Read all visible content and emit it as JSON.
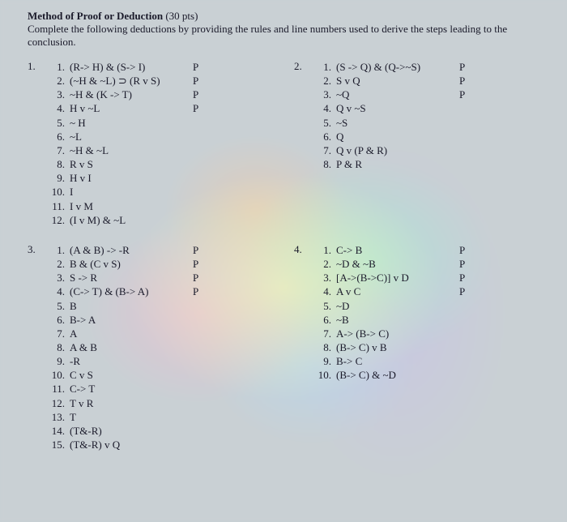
{
  "header": {
    "title_bold": "Method of Proof or Deduction",
    "title_pts": "(30 pts)",
    "instructions": "Complete the following deductions by providing the rules and line numbers used to derive the steps leading to the conclusion."
  },
  "problems": [
    {
      "num": "1.",
      "lines": [
        {
          "n": "1.",
          "expr": "(R-> H) & (S-> I)",
          "just": "P"
        },
        {
          "n": "2.",
          "expr": "(~H & ~L) ⊃ (R v S)",
          "just": "P"
        },
        {
          "n": "3.",
          "expr": "~H & (K -> T)",
          "just": "P"
        },
        {
          "n": "4.",
          "expr": "H v ~L",
          "just": "P"
        },
        {
          "n": "5.",
          "expr": "~ H",
          "just": ""
        },
        {
          "n": "6.",
          "expr": "~L",
          "just": ""
        },
        {
          "n": "7.",
          "expr": "~H & ~L",
          "just": ""
        },
        {
          "n": "8.",
          "expr": "R v S",
          "just": ""
        },
        {
          "n": "9.",
          "expr": "H v I",
          "just": ""
        },
        {
          "n": "10.",
          "expr": "I",
          "just": ""
        },
        {
          "n": "11.",
          "expr": "I v M",
          "just": ""
        },
        {
          "n": "12.",
          "expr": "(I v M) & ~L",
          "just": ""
        }
      ]
    },
    {
      "num": "2.",
      "lines": [
        {
          "n": "1.",
          "expr": "(S -> Q) & (Q->~S)",
          "just": "P"
        },
        {
          "n": "2.",
          "expr": "S v Q",
          "just": "P"
        },
        {
          "n": "3.",
          "expr": "~Q",
          "just": "P"
        },
        {
          "n": "4.",
          "expr": "Q v ~S",
          "just": ""
        },
        {
          "n": "5.",
          "expr": "~S",
          "just": ""
        },
        {
          "n": "6.",
          "expr": "Q",
          "just": ""
        },
        {
          "n": "7.",
          "expr": "Q v (P & R)",
          "just": ""
        },
        {
          "n": "8.",
          "expr": "P & R",
          "just": ""
        }
      ]
    },
    {
      "num": "3.",
      "lines": [
        {
          "n": "1.",
          "expr": "(A & B) -> -R",
          "just": "P"
        },
        {
          "n": "2.",
          "expr": "B & (C v S)",
          "just": "P"
        },
        {
          "n": "3.",
          "expr": "S -> R",
          "just": "P"
        },
        {
          "n": "4.",
          "expr": "(C-> T) & (B-> A)",
          "just": "P"
        },
        {
          "n": "5.",
          "expr": "B",
          "just": ""
        },
        {
          "n": "6.",
          "expr": "B-> A",
          "just": ""
        },
        {
          "n": "7.",
          "expr": "A",
          "just": ""
        },
        {
          "n": "8.",
          "expr": "A & B",
          "just": ""
        },
        {
          "n": "9.",
          "expr": "-R",
          "just": ""
        },
        {
          "n": "10.",
          "expr": "C v S",
          "just": ""
        },
        {
          "n": "11.",
          "expr": "C-> T",
          "just": ""
        },
        {
          "n": "12.",
          "expr": "T v R",
          "just": ""
        },
        {
          "n": "13.",
          "expr": "T",
          "just": ""
        },
        {
          "n": "14.",
          "expr": "(T&-R)",
          "just": ""
        },
        {
          "n": "15.",
          "expr": "(T&-R) v Q",
          "just": ""
        }
      ]
    },
    {
      "num": "4.",
      "lines": [
        {
          "n": "1.",
          "expr": "C-> B",
          "just": "P"
        },
        {
          "n": "2.",
          "expr": "~D & ~B",
          "just": "P"
        },
        {
          "n": "3.",
          "expr": "[A->(B->C)] v D",
          "just": "P"
        },
        {
          "n": "4.",
          "expr": "A v C",
          "just": "P"
        },
        {
          "n": "5.",
          "expr": "~D",
          "just": ""
        },
        {
          "n": "6.",
          "expr": "~B",
          "just": ""
        },
        {
          "n": "7.",
          "expr": "A-> (B-> C)",
          "just": ""
        },
        {
          "n": "8.",
          "expr": "(B-> C) v B",
          "just": ""
        },
        {
          "n": "9.",
          "expr": "B-> C",
          "just": ""
        },
        {
          "n": "10.",
          "expr": "(B-> C) & ~D",
          "just": ""
        }
      ]
    }
  ]
}
